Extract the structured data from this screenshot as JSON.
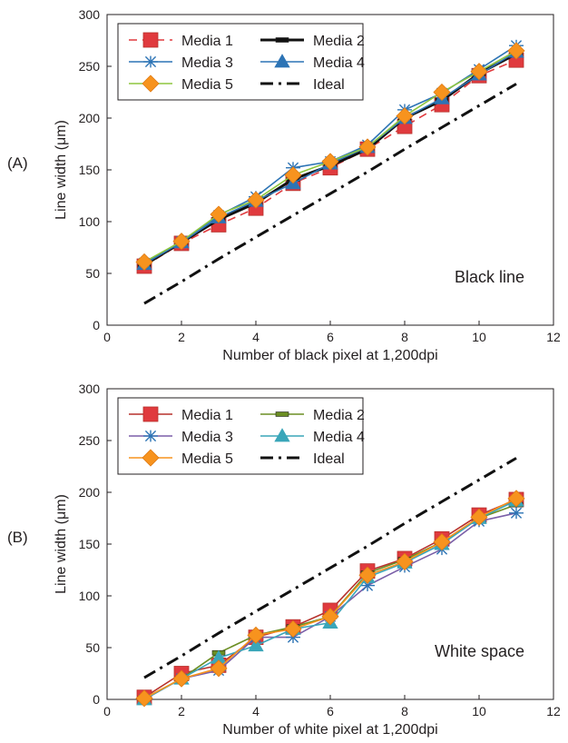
{
  "chart_data": [
    {
      "type": "line",
      "panel_label": "(A)",
      "xlabel": "Number of black pixel at 1,200dpi",
      "ylabel": "Line width (μm)",
      "annotation": "Black line",
      "xlim": [
        0,
        12
      ],
      "ylim": [
        0,
        300
      ],
      "xticks": [
        0,
        2,
        4,
        6,
        8,
        10,
        12
      ],
      "yticks": [
        0,
        50,
        100,
        150,
        200,
        250,
        300
      ],
      "grid": false,
      "legend_position": "top-left",
      "x": [
        1,
        2,
        3,
        4,
        5,
        6,
        7,
        8,
        9,
        10,
        11
      ],
      "series": [
        {
          "name": "Media 1",
          "color": "#e03a3e",
          "dash": "dashed",
          "marker": "square",
          "values": [
            57,
            79,
            97,
            113,
            137,
            152,
            170,
            192,
            213,
            241,
            256
          ]
        },
        {
          "name": "Media 2",
          "color": "#111111",
          "dash": "solid",
          "marker": "bar",
          "stroke_width": 3,
          "values": [
            58,
            80,
            102,
            118,
            141,
            154,
            170,
            200,
            217,
            243,
            262
          ]
        },
        {
          "name": "Media 3",
          "color": "#2d74b5",
          "dash": "solid",
          "marker": "asterisk",
          "values": [
            60,
            81,
            106,
            124,
            152,
            158,
            174,
            208,
            224,
            247,
            270
          ]
        },
        {
          "name": "Media 4",
          "color": "#2d74b5",
          "dash": "solid",
          "marker": "triangle",
          "values": [
            59,
            80,
            104,
            120,
            137,
            156,
            172,
            200,
            219,
            242,
            264
          ]
        },
        {
          "name": "Media 5",
          "color": "#8dc63f",
          "line_color": "#8dc63f",
          "marker_color": "#f7931e",
          "dash": "solid",
          "marker": "diamond",
          "values": [
            61,
            81,
            107,
            121,
            145,
            158,
            172,
            202,
            225,
            245,
            265
          ]
        },
        {
          "name": "Ideal",
          "color": "#111111",
          "dash": "dashdot",
          "marker": "none",
          "stroke_width": 3,
          "values": [
            21,
            42,
            64,
            85,
            106,
            127,
            148,
            170,
            191,
            212,
            233
          ]
        }
      ]
    },
    {
      "type": "line",
      "panel_label": "(B)",
      "xlabel": "Number of white pixel at 1,200dpi",
      "ylabel": "Line width (μm)",
      "annotation": "White space",
      "xlim": [
        0,
        12
      ],
      "ylim": [
        0,
        300
      ],
      "xticks": [
        0,
        2,
        4,
        6,
        8,
        10,
        12
      ],
      "yticks": [
        0,
        50,
        100,
        150,
        200,
        250,
        300
      ],
      "grid": false,
      "legend_position": "top-left",
      "x": [
        1,
        2,
        3,
        4,
        5,
        6,
        7,
        8,
        9,
        10,
        11
      ],
      "series": [
        {
          "name": "Media 1",
          "color": "#b7312c",
          "dash": "solid",
          "marker": "square",
          "marker_color": "#e03a3e",
          "values": [
            2,
            25,
            33,
            60,
            70,
            86,
            124,
            136,
            155,
            178,
            193
          ]
        },
        {
          "name": "Media 2",
          "color": "#6b8e23",
          "dash": "solid",
          "marker": "bar",
          "values": [
            1,
            20,
            45,
            62,
            70,
            80,
            122,
            135,
            152,
            175,
            188
          ]
        },
        {
          "name": "Media 3",
          "color": "#7b5fa8",
          "dash": "solid",
          "marker": "asterisk",
          "marker_color": "#2d74b5",
          "values": [
            0,
            20,
            28,
            60,
            60,
            80,
            110,
            128,
            145,
            172,
            180
          ]
        },
        {
          "name": "Media 4",
          "color": "#3aa6b9",
          "dash": "solid",
          "marker": "triangle",
          "values": [
            0,
            20,
            40,
            52,
            68,
            74,
            118,
            132,
            150,
            175,
            192
          ]
        },
        {
          "name": "Media 5",
          "color": "#f7931e",
          "dash": "solid",
          "marker": "diamond",
          "values": [
            1,
            20,
            30,
            62,
            68,
            80,
            120,
            133,
            152,
            176,
            194
          ]
        },
        {
          "name": "Ideal",
          "color": "#111111",
          "dash": "dashdot",
          "marker": "none",
          "stroke_width": 3,
          "values": [
            21,
            42,
            64,
            85,
            106,
            127,
            148,
            170,
            191,
            212,
            233
          ]
        }
      ]
    }
  ]
}
